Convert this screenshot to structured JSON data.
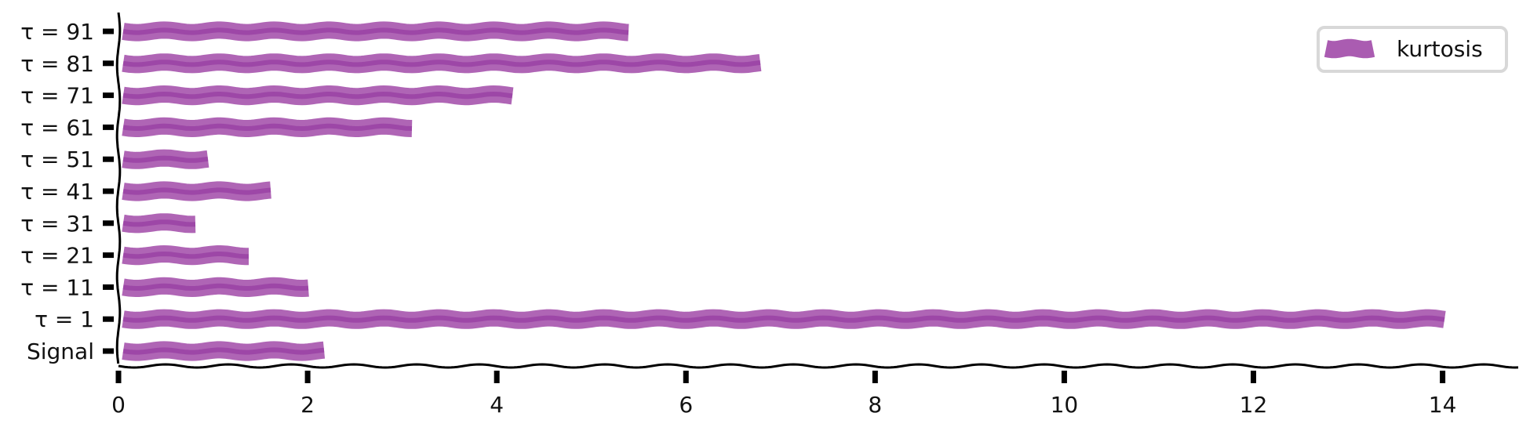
{
  "chart_data": {
    "type": "bar",
    "orientation": "horizontal",
    "categories": [
      "Signal",
      "τ = 1",
      "τ = 11",
      "τ = 21",
      "τ = 31",
      "τ = 41",
      "τ = 51",
      "τ = 61",
      "τ = 71",
      "τ = 81",
      "τ = 91"
    ],
    "series": [
      {
        "name": "kurtosis",
        "color": "#9b3fa3",
        "values": [
          2.18,
          14.02,
          2.03,
          1.4,
          0.82,
          1.62,
          0.96,
          3.13,
          4.18,
          6.81,
          5.42
        ]
      }
    ],
    "xlim": [
      0,
      14.8
    ],
    "xticks": [
      0,
      2,
      4,
      6,
      8,
      10,
      12,
      14
    ],
    "xtick_labels": [
      "0",
      "2",
      "4",
      "6",
      "8",
      "10",
      "12",
      "14"
    ],
    "title": "",
    "xlabel": "",
    "ylabel": "",
    "grid": false,
    "legend_position": "top-right",
    "style": "xkcd"
  }
}
